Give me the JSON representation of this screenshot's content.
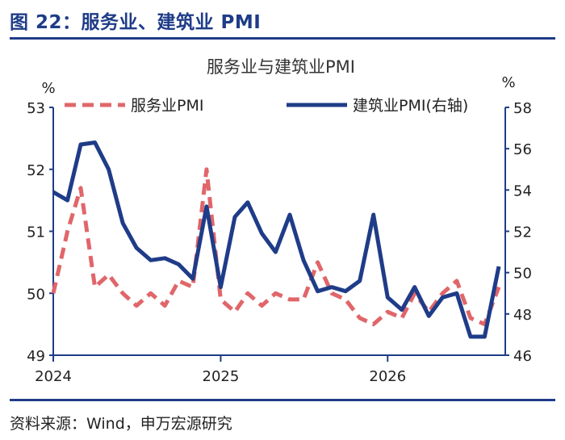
{
  "figure": {
    "title": "图 22：服务业、建筑业 PMI",
    "source": "资料来源：Wind，申万宏源研究"
  },
  "colors": {
    "accent": "#1f3c88",
    "services": "#e0666a",
    "construction": "#1f3c88",
    "axis": "#1f3c88"
  },
  "chart_data": {
    "type": "line",
    "title": "服务业与建筑业PMI",
    "ylabel": "%",
    "y2label": "%",
    "ylim": [
      49,
      53
    ],
    "y2lim": [
      46,
      58
    ],
    "yticks": [
      "49",
      "50",
      "51",
      "52",
      "53"
    ],
    "y2ticks": [
      "46",
      "48",
      "50",
      "52",
      "54",
      "56",
      "58"
    ],
    "xticks": [
      "2024",
      "2025",
      "2026"
    ],
    "legend_position": "top",
    "grid": false,
    "series": [
      {
        "name": "服务业PMI",
        "axis": "left",
        "style": "dashed",
        "x": [
          "2024-01",
          "2024-02",
          "2024-03",
          "2024-04",
          "2024-05",
          "2024-06",
          "2024-07",
          "2024-08",
          "2024-09",
          "2024-10",
          "2024-11",
          "2024-12",
          "2025-01",
          "2025-02",
          "2025-03",
          "2025-04",
          "2025-05",
          "2025-06",
          "2025-07",
          "2025-08",
          "2025-09",
          "2025-10",
          "2025-11",
          "2025-12",
          "2026-01",
          "2026-02",
          "2026-03",
          "2026-04",
          "2026-05",
          "2026-06",
          "2026-07",
          "2026-08",
          "2026-09"
        ],
        "values": [
          50.0,
          51.0,
          51.7,
          50.1,
          50.3,
          50.0,
          49.8,
          50.0,
          49.8,
          50.2,
          50.1,
          52.0,
          49.9,
          49.7,
          50.0,
          49.8,
          50.0,
          49.9,
          49.9,
          50.5,
          50.0,
          49.9,
          49.6,
          49.5,
          49.7,
          49.6,
          50.0,
          49.7,
          50.0,
          50.2,
          49.6,
          49.5,
          50.1
        ]
      },
      {
        "name": "建筑业PMI(右轴)",
        "axis": "right",
        "style": "solid",
        "x": [
          "2024-01",
          "2024-02",
          "2024-03",
          "2024-04",
          "2024-05",
          "2024-06",
          "2024-07",
          "2024-08",
          "2024-09",
          "2024-10",
          "2024-11",
          "2024-12",
          "2025-01",
          "2025-02",
          "2025-03",
          "2025-04",
          "2025-05",
          "2025-06",
          "2025-07",
          "2025-08",
          "2025-09",
          "2025-10",
          "2025-11",
          "2025-12",
          "2026-01",
          "2026-02",
          "2026-03",
          "2026-04",
          "2026-05",
          "2026-06",
          "2026-07",
          "2026-08",
          "2026-09"
        ],
        "values": [
          53.9,
          53.5,
          56.2,
          56.3,
          55.0,
          52.4,
          51.2,
          50.6,
          50.7,
          50.4,
          49.7,
          53.2,
          49.3,
          52.7,
          53.4,
          51.9,
          51.0,
          52.8,
          50.6,
          49.1,
          49.3,
          49.1,
          49.6,
          52.8,
          48.8,
          48.2,
          49.3,
          47.9,
          48.8,
          49.0,
          46.9,
          46.9,
          50.3
        ]
      }
    ]
  }
}
